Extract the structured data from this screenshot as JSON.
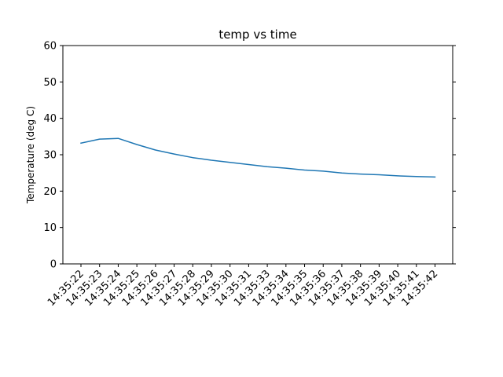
{
  "chart_data": {
    "type": "line",
    "title": "temp vs time",
    "xlabel": "",
    "ylabel": "Temperature (deg C)",
    "ylim": [
      0,
      60
    ],
    "yticks": [
      0,
      10,
      20,
      30,
      40,
      50,
      60
    ],
    "grid": false,
    "legend": "none",
    "x": [
      "14:35:22",
      "14:35:23",
      "14:35:24",
      "14:35:25",
      "14:35:26",
      "14:35:27",
      "14:35:28",
      "14:35:29",
      "14:35:30",
      "14:35:31",
      "14:35:33",
      "14:35:34",
      "14:35:35",
      "14:35:36",
      "14:35:37",
      "14:35:38",
      "14:35:39",
      "14:35:40",
      "14:35:41",
      "14:35:42"
    ],
    "series": [
      {
        "color": "#1f77b4",
        "values": [
          33.2,
          34.3,
          34.5,
          32.8,
          31.3,
          30.2,
          29.2,
          28.5,
          27.9,
          27.3,
          26.7,
          26.3,
          25.8,
          25.5,
          25.0,
          24.7,
          24.5,
          24.2,
          24.0,
          23.9
        ]
      }
    ]
  }
}
